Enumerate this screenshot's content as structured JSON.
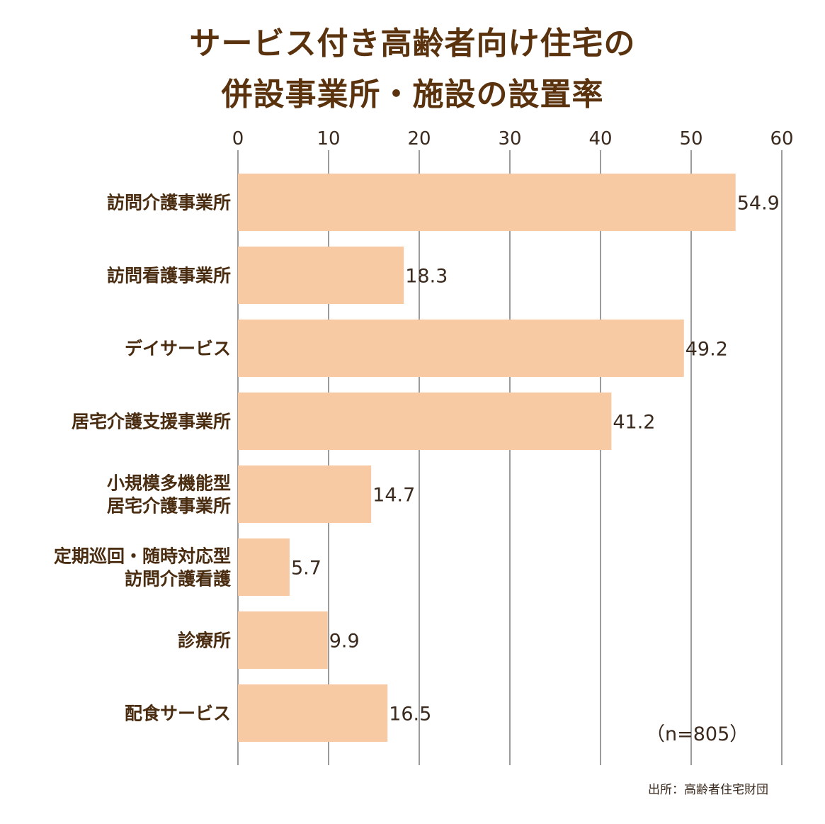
{
  "title_lines": [
    "サービス付き高齢者向け住宅の",
    "併設事業所・施設の設置率"
  ],
  "chart_data": {
    "type": "bar",
    "orientation": "horizontal",
    "title": "サービス付き高齢者向け住宅の併設事業所・施設の設置率",
    "xlim": [
      0,
      60
    ],
    "xticks": [
      0,
      10,
      20,
      30,
      40,
      50,
      60
    ],
    "grid": true,
    "categories": [
      [
        "訪問介護事業所"
      ],
      [
        "訪問看護事業所"
      ],
      [
        "デイサービス"
      ],
      [
        "居宅介護支援事業所"
      ],
      [
        "小規模多機能型",
        "居宅介護事業所"
      ],
      [
        "定期巡回・随時対応型",
        "訪問介護看護"
      ],
      [
        "診療所"
      ],
      [
        "配食サービス"
      ]
    ],
    "values": [
      54.9,
      18.3,
      49.2,
      41.2,
      14.7,
      5.7,
      9.9,
      16.5
    ],
    "bar_color": "#f7caa4"
  },
  "note": "（n=805）",
  "source": "出所：高齢者住宅財団"
}
